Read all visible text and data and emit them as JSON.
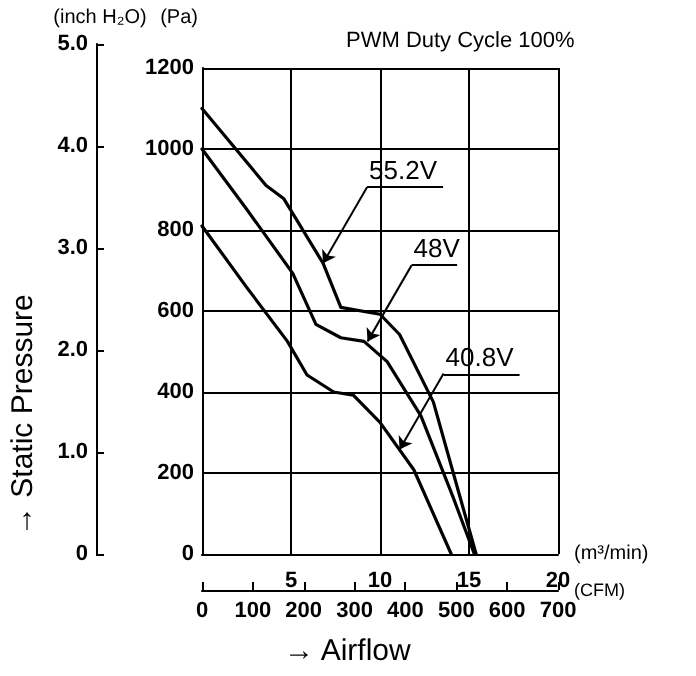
{
  "chart_data": {
    "type": "line",
    "title": "PWM Duty Cycle 100%",
    "xlabel": "(m³/min)",
    "ylabel": "(Pa)",
    "y2label": "(inch H₂O)",
    "x2label": "(CFM)",
    "annotations": [
      {
        "text": "55.2V",
        "x": 6.8,
        "y": 718
      },
      {
        "text": "48V",
        "x": 9.3,
        "y": 525
      },
      {
        "text": "40.8V",
        "x": 11.1,
        "y": 258
      },
      "→ Static Pressure",
      "→ Airflow"
    ],
    "series": [
      {
        "color": "#000000",
        "x": [
          0,
          3.6,
          4.6,
          6.8,
          7.8,
          10,
          11.1,
          13,
          14.5,
          15.4
        ],
        "values": [
          1100,
          910,
          877,
          718,
          609,
          592,
          542,
          375,
          140,
          0
        ]
      },
      {
        "color": "#000000",
        "x": [
          0,
          2.5,
          5.1,
          6.4,
          7.8,
          9.1,
          10.4,
          12.3,
          14.1,
          15.3
        ],
        "values": [
          1000,
          852,
          693,
          567,
          534,
          525,
          475,
          341,
          141,
          0
        ]
      },
      {
        "color": "#000000",
        "x": [
          0,
          2.5,
          4.8,
          5.9,
          7.4,
          8.5,
          10,
          11.9,
          14
        ],
        "values": [
          810,
          659,
          525,
          442,
          400,
          392,
          325,
          208,
          0
        ]
      }
    ],
    "xlim": [
      0,
      20
    ],
    "xticks": [
      5,
      10,
      15,
      20
    ],
    "ylim": [
      0,
      1200
    ],
    "yticks": [
      0,
      200,
      400,
      600,
      800,
      1000,
      1200
    ],
    "y2lim": [
      0,
      5
    ],
    "y2ticks": [
      0,
      {
        "value": 1,
        "label": "1.0"
      },
      {
        "value": 2,
        "label": "2.0"
      },
      {
        "value": 3,
        "label": "3.0"
      },
      {
        "value": 4,
        "label": "4.0"
      },
      {
        "value": 5,
        "label": "5.0"
      }
    ],
    "x2lim": [
      0,
      700
    ],
    "x2ticks": [
      0,
      100,
      200,
      300,
      400,
      500,
      600,
      700
    ],
    "grid": true,
    "marker": "none",
    "line_style": "solid"
  }
}
